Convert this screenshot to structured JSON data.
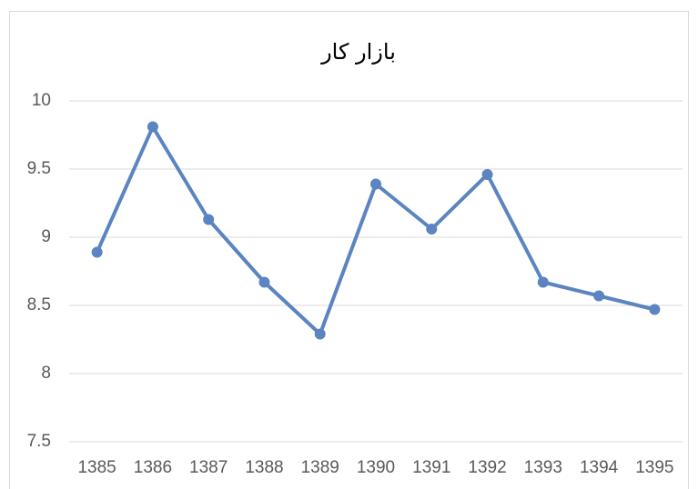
{
  "chart_data": {
    "type": "line",
    "title": "بازار کار",
    "categories": [
      "1385",
      "1386",
      "1387",
      "1388",
      "1389",
      "1390",
      "1391",
      "1392",
      "1393",
      "1394",
      "1395"
    ],
    "values": [
      8.89,
      9.81,
      9.13,
      8.67,
      8.29,
      9.39,
      9.06,
      9.46,
      8.67,
      8.57,
      8.47
    ],
    "color": "#5b84c1",
    "ylim": [
      7.5,
      10
    ],
    "yticks": [
      7.5,
      8,
      8.5,
      9,
      9.5,
      10
    ],
    "grid": true
  }
}
